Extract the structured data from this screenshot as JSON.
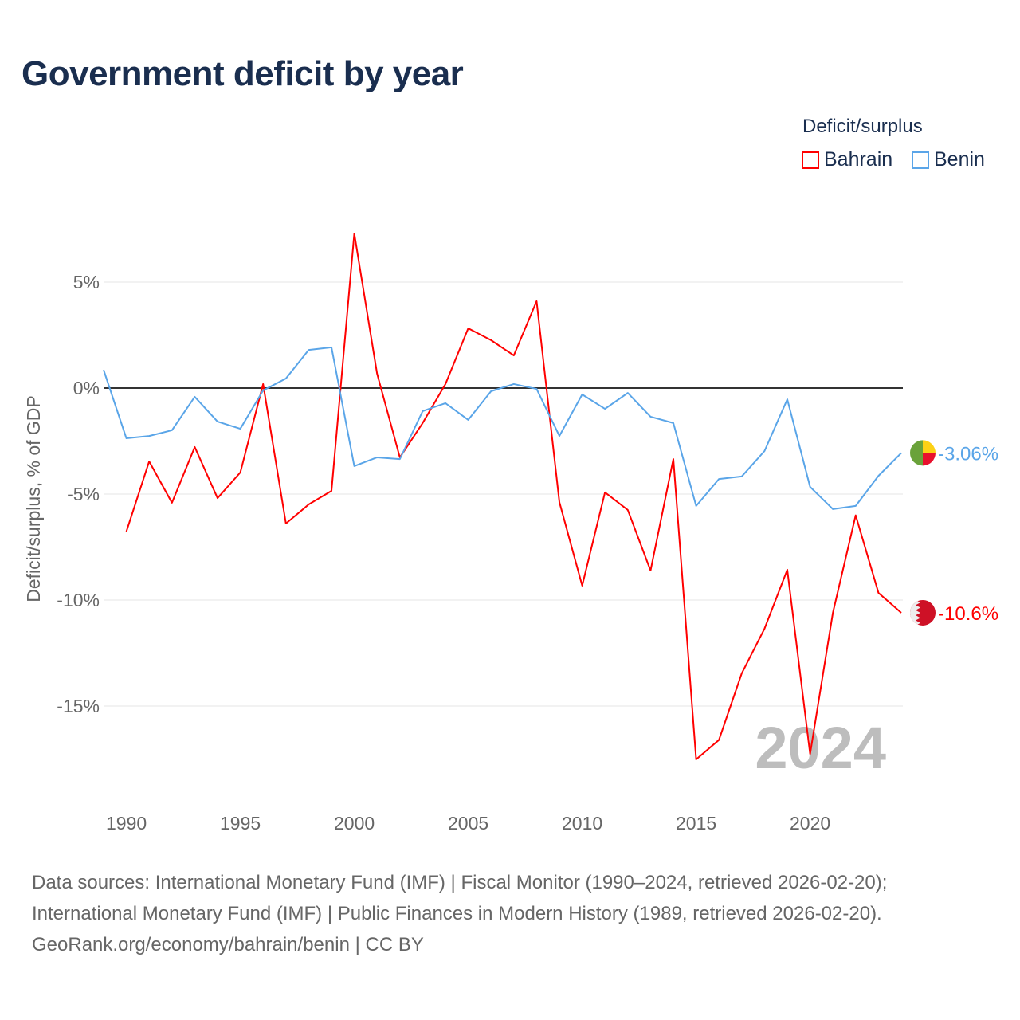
{
  "title": "Government deficit by year",
  "legend": {
    "title": "Deficit/surplus",
    "items": [
      "Bahrain",
      "Benin"
    ]
  },
  "chart_data": {
    "type": "line",
    "title": "Government deficit by year",
    "ylabel": "Deficit/surplus, % of GDP",
    "xlabel": "",
    "ylim": [
      -19,
      8.5
    ],
    "xlim": [
      1989,
      2024
    ],
    "yticks": [
      5,
      0,
      -5,
      -10,
      -15
    ],
    "ytick_labels": [
      "5%",
      "0%",
      "-5%",
      "-10%",
      "-15%"
    ],
    "xticks": [
      1990,
      1995,
      2000,
      2005,
      2010,
      2015,
      2020
    ],
    "xtick_labels": [
      "1990",
      "1995",
      "2000",
      "2005",
      "2010",
      "2015",
      "2020"
    ],
    "year_label": "2024",
    "series": [
      {
        "name": "Bahrain",
        "color": "#ff0000",
        "end_label": "-10.6%",
        "start": 1990,
        "values": [
          -6.77,
          -3.46,
          -5.41,
          -2.78,
          -5.19,
          -3.98,
          0.19,
          -6.39,
          -5.49,
          -4.85,
          7.29,
          0.68,
          -3.27,
          -1.65,
          0.19,
          2.82,
          2.26,
          1.54,
          4.1,
          -5.38,
          -9.32,
          -4.92,
          -5.75,
          -8.61,
          -3.35,
          -17.52,
          -16.6,
          -13.46,
          -11.35,
          -8.57,
          -17.26,
          -10.6,
          -6.0,
          -9.66,
          -10.6
        ]
      },
      {
        "name": "Benin",
        "color": "#5aa5e8",
        "end_label": "-3.06%",
        "start": 1989,
        "values": [
          0.86,
          -2.37,
          -2.26,
          -1.99,
          -0.41,
          -1.58,
          -1.92,
          -0.11,
          0.45,
          1.8,
          1.92,
          -3.68,
          -3.27,
          -3.35,
          -1.09,
          -0.71,
          -1.5,
          -0.15,
          0.19,
          -0.04,
          -2.26,
          -0.3,
          -0.98,
          -0.23,
          -1.35,
          -1.65,
          -5.56,
          -4.29,
          -4.17,
          -2.97,
          -0.53,
          -4.66,
          -5.71,
          -5.56,
          -4.14,
          -3.06
        ]
      }
    ]
  },
  "sources": [
    "Data sources: International Monetary Fund (IMF) | Fiscal Monitor (1990–2024, retrieved 2026-02-20);",
    "International Monetary Fund (IMF) | Public Finances in Modern History (1989, retrieved 2026-02-20).",
    "GeoRank.org/economy/bahrain/benin | CC BY"
  ]
}
